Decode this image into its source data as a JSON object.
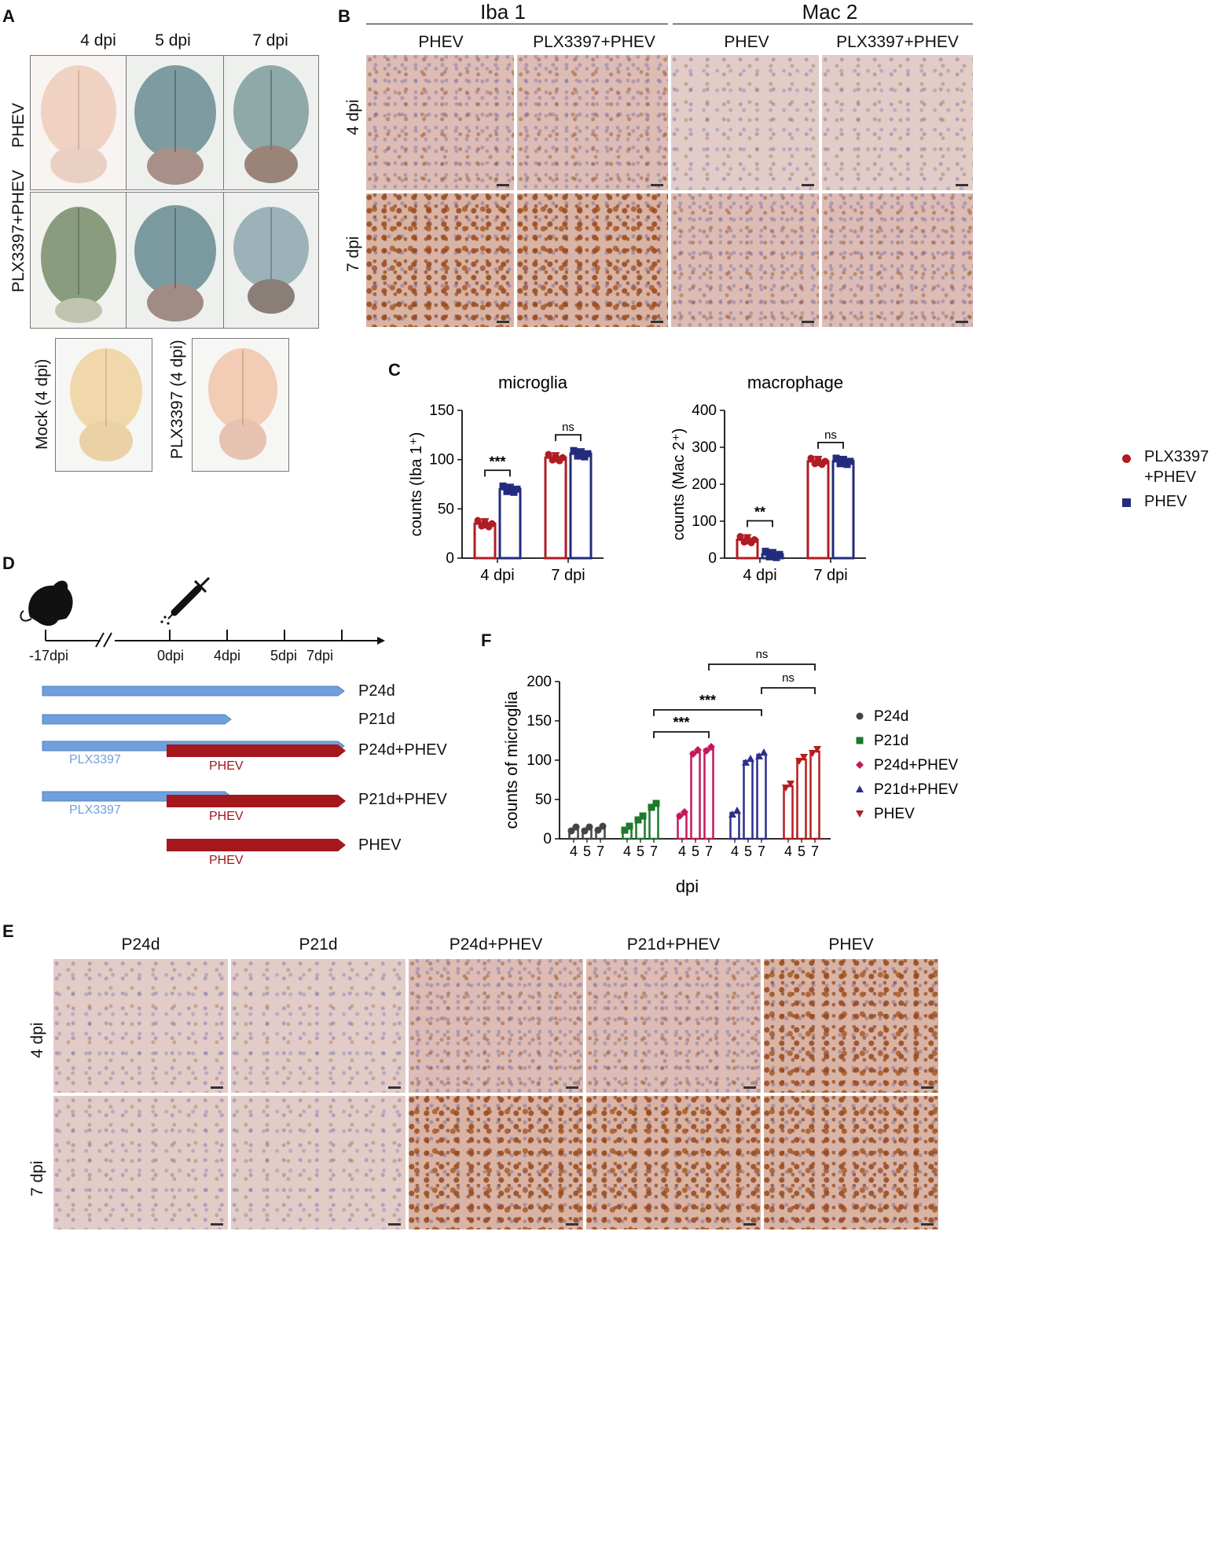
{
  "panels": {
    "A": "A",
    "B": "B",
    "C": "C",
    "D": "D",
    "E": "E",
    "F": "F"
  },
  "panelA": {
    "col_labels": [
      "4 dpi",
      "5 dpi",
      "7 dpi"
    ],
    "row_labels": [
      "PHEV",
      "PLX3397+PHEV"
    ],
    "extra_labels": [
      "Mock (4 dpi)",
      "PLX3397 (4 dpi)"
    ]
  },
  "panelB": {
    "groups": [
      "Iba 1",
      "Mac 2"
    ],
    "col_labels": [
      "PHEV",
      "PLX3397+PHEV",
      "PHEV",
      "PLX3397+PHEV"
    ],
    "row_labels": [
      "4 dpi",
      "7 dpi"
    ]
  },
  "panelC": {
    "legend": [
      {
        "label_line1": "PLX3397",
        "label_line2": "+PHEV",
        "color": "#b01c24"
      },
      {
        "label_line1": "PHEV",
        "label_line2": "",
        "color": "#232c7c"
      }
    ],
    "sig": {
      "micro_4": "***",
      "micro_7": "ns",
      "macro_4": "**",
      "macro_7": "ns"
    }
  },
  "panelD": {
    "ticks": [
      "-17dpi",
      "0dpi",
      "4dpi",
      "5dpi",
      "7dpi"
    ],
    "bars": [
      "P24d",
      "P21d",
      "P24d+PHEV",
      "P21d+PHEV",
      "PHEV"
    ],
    "sub_plx": "PLX3397",
    "sub_phev": "PHEV",
    "colors": {
      "plx": "#6fa0dd",
      "phev": "#a3171d"
    }
  },
  "panelE": {
    "col_labels": [
      "P24d",
      "P21d",
      "P24d+PHEV",
      "P21d+PHEV",
      "PHEV"
    ],
    "row_labels": [
      "4 dpi",
      "7 dpi"
    ]
  },
  "panelF": {
    "sig": [
      "ns",
      "ns",
      "***",
      "***"
    ]
  },
  "chart_data": [
    {
      "type": "bar",
      "title": "microglia",
      "ylabel": "counts (Iba 1⁺)",
      "categories": [
        "4 dpi",
        "7 dpi"
      ],
      "series": [
        {
          "name": "PLX3397 +PHEV",
          "values": [
            35,
            102
          ],
          "color": "#b01c24"
        },
        {
          "name": "PHEV",
          "values": [
            70,
            106
          ],
          "color": "#232c7c"
        }
      ],
      "ylim": [
        0,
        150
      ],
      "yticks": [
        0,
        50,
        100,
        150
      ]
    },
    {
      "type": "bar",
      "title": "macrophage",
      "ylabel": "counts (Mac 2⁺)",
      "categories": [
        "4 dpi",
        "7 dpi"
      ],
      "series": [
        {
          "name": "PLX3397 +PHEV",
          "values": [
            50,
            262
          ],
          "color": "#b01c24"
        },
        {
          "name": "PHEV",
          "values": [
            10,
            262
          ],
          "color": "#232c7c"
        }
      ],
      "ylim": [
        0,
        400
      ],
      "yticks": [
        0,
        100,
        200,
        300,
        400
      ]
    },
    {
      "type": "bar",
      "ylabel": "counts of microglia",
      "xlabel": "dpi",
      "groups": [
        "P24d",
        "P21d",
        "P24d+PHEV",
        "P21d+PHEV",
        "PHEV"
      ],
      "categories": [
        "4",
        "5",
        "7"
      ],
      "series": [
        {
          "name": "P24d",
          "values": [
            12,
            12,
            13
          ],
          "color": "#444444"
        },
        {
          "name": "P21d",
          "values": [
            13,
            26,
            42
          ],
          "color": "#1b7a2c"
        },
        {
          "name": "P24d+PHEV",
          "values": [
            31,
            110,
            114
          ],
          "color": "#c2185b"
        },
        {
          "name": "P21d+PHEV",
          "values": [
            33,
            99,
            107
          ],
          "color": "#2c2f8c"
        },
        {
          "name": "PHEV",
          "values": [
            67,
            101,
            111
          ],
          "color": "#b71c1c"
        }
      ],
      "ylim": [
        0,
        200
      ],
      "yticks": [
        0,
        50,
        100,
        150,
        200
      ]
    }
  ]
}
